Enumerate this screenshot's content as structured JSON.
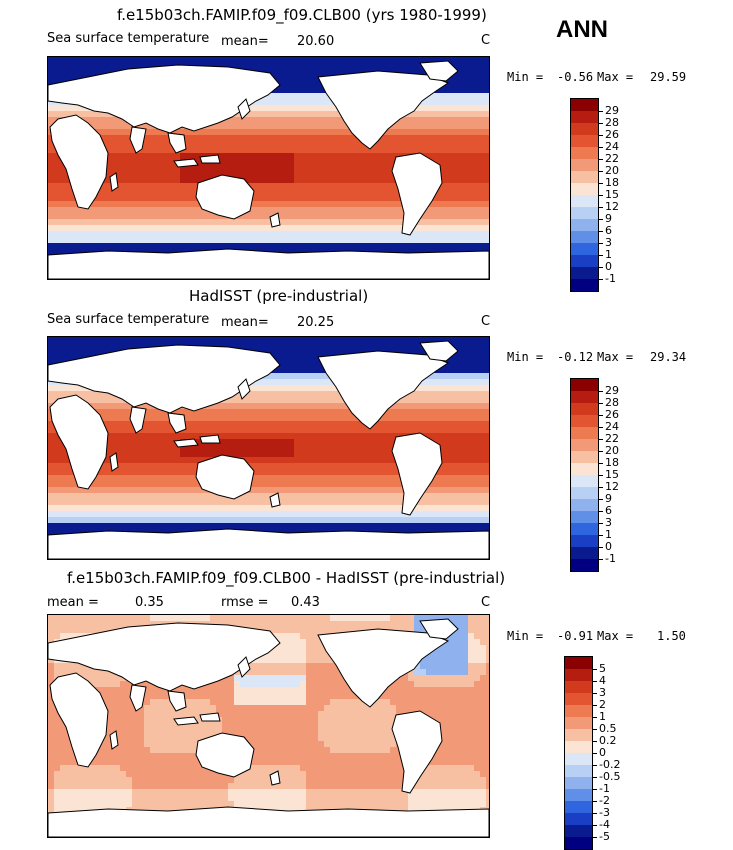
{
  "header": {
    "ann_label": "ANN"
  },
  "panels": [
    {
      "title": "f.e15b03ch.FAMIP.f09_f09.CLB00 (yrs 1980-1999)",
      "left_label": "Sea surface temperature",
      "stat1_label": "mean=",
      "stat1_value": "20.60",
      "units": "C",
      "min_label": "Min =",
      "min_value": "-0.56",
      "max_label": "Max =",
      "max_value": "29.59",
      "colorbar": {
        "labels": [
          "29",
          "28",
          "26",
          "24",
          "22",
          "20",
          "18",
          "15",
          "12",
          "9",
          "6",
          "3",
          "1",
          "0",
          "-1"
        ],
        "colors": [
          "#8b0000",
          "#b51d10",
          "#d13a1c",
          "#e25530",
          "#ee7a52",
          "#f29a78",
          "#f7c0a3",
          "#fbe4d4",
          "#dbe7f6",
          "#b8d0f3",
          "#8fb2ee",
          "#5f8fe6",
          "#2f66e0",
          "#1a3fc4",
          "#0a1a8f",
          "#000080"
        ]
      },
      "map_style": "absolute_a"
    },
    {
      "title": "HadISST (pre-industrial)",
      "left_label": "Sea surface temperature",
      "stat1_label": "mean=",
      "stat1_value": "20.25",
      "units": "C",
      "min_label": "Min =",
      "min_value": "-0.12",
      "max_label": "Max =",
      "max_value": "29.34",
      "colorbar": {
        "labels": [
          "29",
          "28",
          "26",
          "24",
          "22",
          "20",
          "18",
          "15",
          "12",
          "9",
          "6",
          "3",
          "1",
          "0",
          "-1"
        ],
        "colors": [
          "#8b0000",
          "#b51d10",
          "#d13a1c",
          "#e25530",
          "#ee7a52",
          "#f29a78",
          "#f7c0a3",
          "#fbe4d4",
          "#dbe7f6",
          "#b8d0f3",
          "#8fb2ee",
          "#5f8fe6",
          "#2f66e0",
          "#1a3fc4",
          "#0a1a8f",
          "#000080"
        ]
      },
      "map_style": "absolute_b"
    },
    {
      "title": "f.e15b03ch.FAMIP.f09_f09.CLB00 - HadISST (pre-industrial)",
      "left_label": "mean =",
      "stat0_value": "0.35",
      "stat1_label": "rmse =",
      "stat1_value": "0.43",
      "units": "C",
      "min_label": "Min =",
      "min_value": "-0.91",
      "max_label": "Max =",
      "max_value": "1.50",
      "colorbar": {
        "labels": [
          "5",
          "4",
          "3",
          "2",
          "1",
          "0.5",
          "0.2",
          "0",
          "-0.2",
          "-0.5",
          "-1",
          "-2",
          "-3",
          "-4",
          "-5"
        ],
        "colors": [
          "#8b0000",
          "#b51d10",
          "#d13a1c",
          "#e25530",
          "#ee7a52",
          "#f29a78",
          "#f7c0a3",
          "#fbe4d4",
          "#dbe7f6",
          "#b8d0f3",
          "#8fb2ee",
          "#5f8fe6",
          "#2f66e0",
          "#1a3fc4",
          "#0a1a8f",
          "#000080"
        ]
      },
      "map_style": "difference"
    }
  ]
}
